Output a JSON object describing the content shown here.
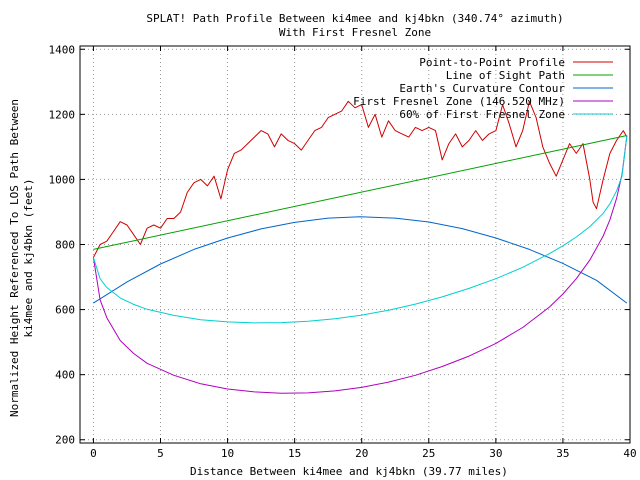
{
  "chart_data": {
    "type": "line",
    "title": "SPLAT! Path Profile Between ki4mee and kj4bkn (340.74° azimuth)",
    "subtitle": "With First Fresnel Zone",
    "xlabel": "Distance Between ki4mee and kj4bkn (39.77 miles)",
    "ylabel_line1": "Normalized Height Referenced To LOS Path Between",
    "ylabel_line2": "ki4mee and kj4bkn (feet)",
    "xlim": [
      -1,
      40
    ],
    "ylim": [
      190,
      1410
    ],
    "x_ticks": [
      0,
      5,
      10,
      15,
      20,
      25,
      30,
      35,
      40
    ],
    "x_tick_labels": [
      "0",
      "5",
      "10",
      "15",
      "20",
      "25",
      "30",
      "35",
      "40"
    ],
    "y_ticks": [
      200,
      400,
      600,
      800,
      1000,
      1200,
      1400
    ],
    "y_tick_labels": [
      "200",
      "400",
      "600",
      "800",
      "1000",
      "1200",
      "1400"
    ],
    "grid": true,
    "legend_position": "top-right",
    "series": [
      {
        "name": "Point-to-Point Profile",
        "color": "#d00000",
        "x": [
          0,
          0.5,
          1,
          1.5,
          2,
          2.5,
          3,
          3.5,
          4,
          4.5,
          5,
          5.5,
          6,
          6.5,
          7,
          7.5,
          8,
          8.5,
          9,
          9.5,
          10,
          10.5,
          11,
          11.5,
          12,
          12.5,
          13,
          13.5,
          14,
          14.5,
          15,
          15.5,
          16,
          16.5,
          17,
          17.5,
          18,
          18.5,
          19,
          19.5,
          20,
          20.5,
          21,
          21.5,
          22,
          22.5,
          23,
          23.5,
          24,
          24.5,
          25,
          25.5,
          26,
          26.5,
          27,
          27.5,
          28,
          28.5,
          29,
          29.5,
          30,
          30.5,
          31,
          31.5,
          32,
          32.5,
          33,
          33.5,
          34,
          34.5,
          35,
          35.5,
          36,
          36.5,
          37,
          37.25,
          37.5,
          38,
          38.5,
          39,
          39.5,
          39.77
        ],
        "values": [
          760,
          800,
          810,
          840,
          870,
          860,
          830,
          800,
          850,
          860,
          850,
          880,
          880,
          900,
          960,
          990,
          1000,
          980,
          1010,
          940,
          1030,
          1080,
          1090,
          1110,
          1130,
          1150,
          1140,
          1100,
          1140,
          1120,
          1110,
          1090,
          1120,
          1150,
          1160,
          1190,
          1200,
          1210,
          1240,
          1220,
          1230,
          1160,
          1200,
          1130,
          1180,
          1150,
          1140,
          1130,
          1160,
          1150,
          1160,
          1150,
          1060,
          1110,
          1140,
          1100,
          1120,
          1150,
          1120,
          1140,
          1150,
          1230,
          1170,
          1100,
          1150,
          1240,
          1190,
          1100,
          1050,
          1010,
          1060,
          1110,
          1080,
          1110,
          1000,
          930,
          910,
          1000,
          1080,
          1120,
          1150,
          1130
        ]
      },
      {
        "name": "Line of Sight Path",
        "color": "#00a000",
        "x": [
          0,
          39.77
        ],
        "values": [
          785,
          1135
        ]
      },
      {
        "name": "Earth's Curvature Contour",
        "color": "#0066cc",
        "x": [
          0,
          2.5,
          5,
          7.5,
          10,
          12.5,
          15,
          17.5,
          19.885,
          22.5,
          25,
          27.5,
          30,
          32.5,
          35,
          37.5,
          39.77
        ],
        "values": [
          620,
          685,
          740,
          785,
          820,
          848,
          868,
          881,
          885,
          881,
          869,
          849,
          820,
          785,
          742,
          690,
          620
        ]
      },
      {
        "name": "First Fresnel Zone (146.520 MHz)",
        "color": "#b000c0",
        "x": [
          0,
          0.5,
          1,
          2,
          3,
          4,
          6,
          8,
          10,
          12,
          14,
          16,
          18,
          20,
          22,
          24,
          26,
          28,
          30,
          32,
          34,
          35,
          36,
          37,
          38,
          38.5,
          39,
          39.4,
          39.77
        ],
        "values": [
          760,
          630,
          575,
          505,
          465,
          435,
          398,
          372,
          356,
          347,
          343,
          344,
          350,
          361,
          377,
          398,
          425,
          457,
          496,
          545,
          608,
          648,
          695,
          752,
          826,
          876,
          942,
          1015,
          1135
        ]
      },
      {
        "name": "60% of First Fresnel Zone",
        "color": "#00d0d0",
        "x": [
          0,
          0.5,
          1,
          2,
          3,
          4,
          6,
          8,
          10,
          12,
          14,
          16,
          18,
          20,
          22,
          24,
          26,
          28,
          30,
          32,
          34,
          35,
          36,
          37,
          38,
          38.5,
          39,
          39.4,
          39.77
        ],
        "values": [
          760,
          695,
          668,
          636,
          616,
          601,
          582,
          569,
          562,
          559,
          560,
          564,
          572,
          583,
          598,
          617,
          639,
          665,
          695,
          730,
          772,
          796,
          823,
          855,
          896,
          925,
          965,
          1010,
          1135
        ]
      }
    ]
  }
}
